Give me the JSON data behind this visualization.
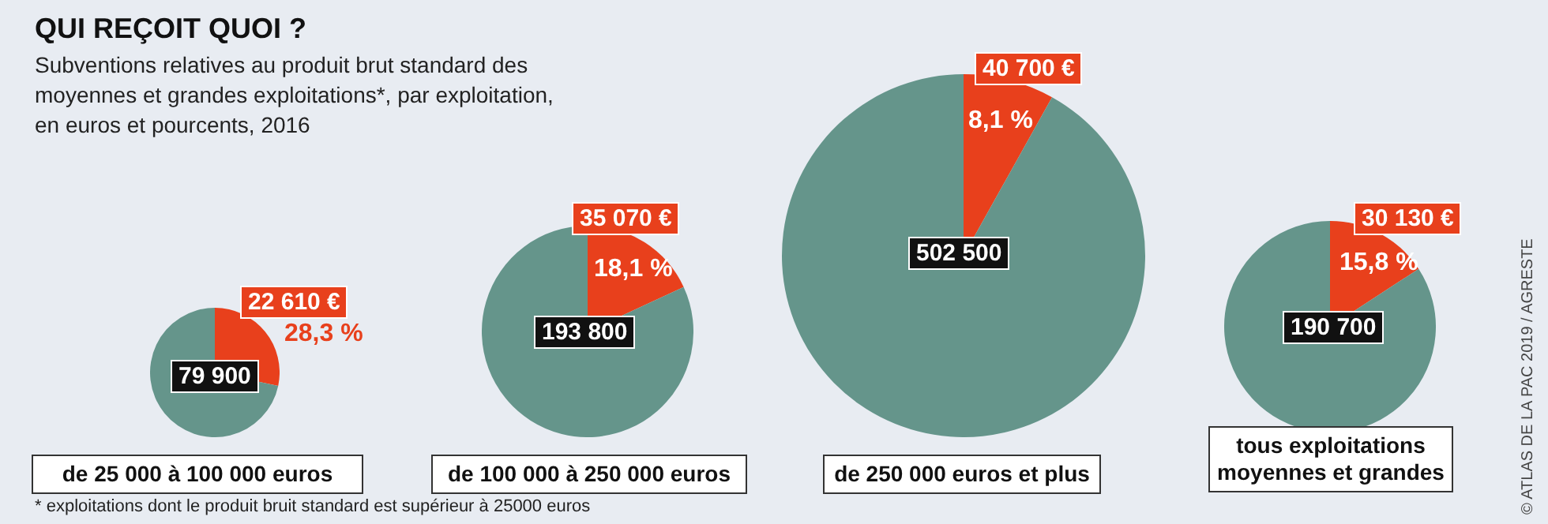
{
  "chart_data": [
    {
      "type": "pie",
      "title": "QUI REÇOIT QUOI ?",
      "subtitle": "Subventions relatives au produit brut standard des moyennes et grandes exploitations*, par exploitation, en euros et pourcents, 2016",
      "xlabel": "de 25 000 à 100 000 euros",
      "categories": [
        null,
        null
      ],
      "values": [
        28.3,
        71.7
      ],
      "colors": [
        "#e8401c",
        "#65958b"
      ],
      "value_labels": [
        "28,3 %",
        null
      ],
      "annotations": [
        "22 610 €",
        "79 900",
        "* exploitations dont le produit bruit standard est supérieur à 25000 euros",
        "© ATLAS DE LA PAC 2019 / AGRESTE"
      ]
    },
    {
      "type": "pie",
      "xlabel": "de 100 000 à 250 000 euros",
      "categories": [
        null,
        null
      ],
      "values": [
        18.1,
        81.9
      ],
      "colors": [
        "#e8401c",
        "#65958b"
      ],
      "value_labels": [
        "18,1 %",
        null
      ],
      "annotations": [
        "35 070 €",
        "193 800"
      ]
    },
    {
      "type": "pie",
      "xlabel": "de 250 000 euros et plus",
      "categories": [
        null,
        null
      ],
      "values": [
        8.1,
        91.9
      ],
      "colors": [
        "#e8401c",
        "#65958b"
      ],
      "value_labels": [
        "8,1 %",
        null
      ],
      "annotations": [
        "40 700 €",
        "502 500"
      ]
    },
    {
      "type": "pie",
      "xlabel": "tous exploitations moyennes et grandes",
      "categories": [
        null,
        null
      ],
      "values": [
        15.8,
        84.2
      ],
      "colors": [
        "#e8401c",
        "#65958b"
      ],
      "value_labels": [
        "15,8 %",
        null
      ],
      "annotations": [
        "30 130 €",
        "190 700"
      ]
    }
  ]
}
